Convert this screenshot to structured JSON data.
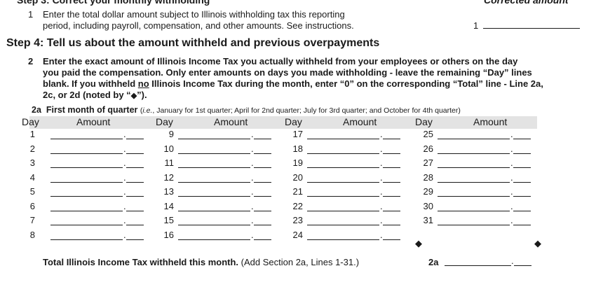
{
  "header": {
    "partial_text": "Step 3: Correct your monthly withholding",
    "corrected_label": "Corrected amount"
  },
  "line1": {
    "number": "1",
    "text_line1": "Enter the total dollar amount subject to Illinois withholding tax this reporting",
    "text_line2": "period, including payroll, compensation, and other amounts. See instructions.",
    "field_label": "1"
  },
  "step4": {
    "title": "Step 4: Tell us about the amount withheld and previous overpayments"
  },
  "line2": {
    "number": "2",
    "l1": "Enter the exact amount of Illinois Income Tax you actually withheld from your employees or others on the day",
    "l2": "you paid the compensation. Only enter amounts on days you made withholding - leave the remaining “Day” lines",
    "l3_pre": "blank. If you withheld ",
    "l3_no": "no",
    "l3_post": " Illinois Income Tax during the month, enter “0” on the corresponding “Total” line - Line 2a,",
    "l4_pre": "2c, or 2d (noted by “",
    "l4_post": "”)."
  },
  "line2a": {
    "label": "2a",
    "title": "First month of quarter",
    "note_prefix": "(",
    "note_ie": "i.e.",
    "note_rest": ", January for 1st quarter; April for 2nd quarter; July for 3rd quarter; and October for 4th quarter)"
  },
  "columns": [
    {
      "day_label": "Day",
      "amount_label": "Amount",
      "days": [
        "1",
        "2",
        "3",
        "4",
        "5",
        "6",
        "7",
        "8"
      ]
    },
    {
      "day_label": "Day",
      "amount_label": "Amount",
      "days": [
        "9",
        "10",
        "11",
        "12",
        "13",
        "14",
        "15",
        "16"
      ]
    },
    {
      "day_label": "Day",
      "amount_label": "Amount",
      "days": [
        "17",
        "18",
        "19",
        "20",
        "21",
        "22",
        "23",
        "24"
      ]
    },
    {
      "day_label": "Day",
      "amount_label": "Amount",
      "days": [
        "25",
        "26",
        "27",
        "28",
        "29",
        "30",
        "31"
      ]
    }
  ],
  "marker_glyph": "◆",
  "total": {
    "text": "Total Illinois Income Tax withheld this month.",
    "note": "(Add Section 2a, Lines 1-31.)",
    "field_label": "2a"
  }
}
